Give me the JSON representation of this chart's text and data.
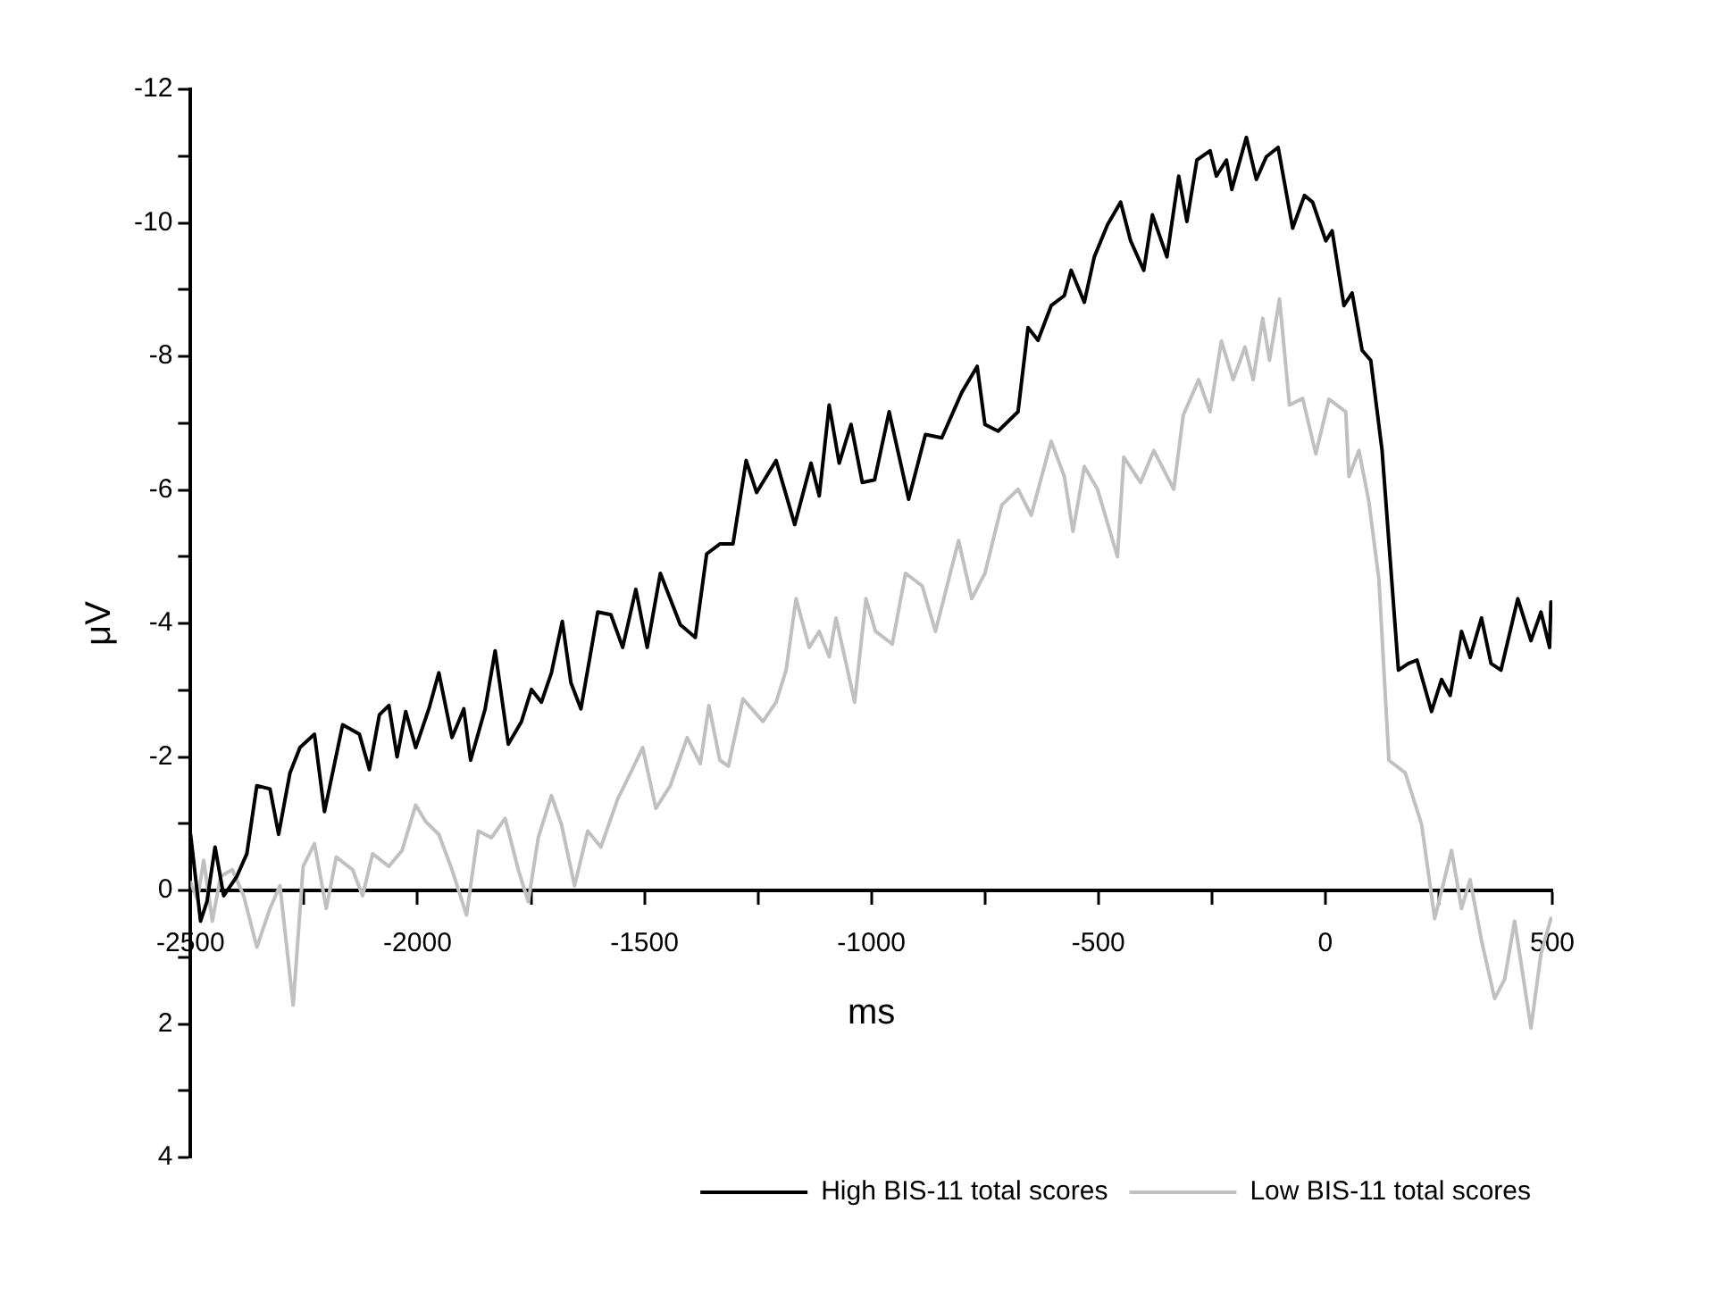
{
  "chart_data": {
    "type": "line",
    "xlabel": "ms",
    "ylabel": "μV",
    "xlim": [
      -2500,
      500
    ],
    "ylim": [
      4,
      -12
    ],
    "xticks": [
      -2500,
      {
        "value": -2250,
        "label": null
      },
      -2000,
      {
        "value": -1750,
        "label": null
      },
      -1500,
      {
        "value": -1250,
        "label": null
      },
      -1000,
      {
        "value": -750,
        "label": null
      },
      -500,
      {
        "value": -250,
        "label": null
      },
      0,
      {
        "value": 250,
        "label": null
      },
      500
    ],
    "yticks": [
      -12,
      {
        "value": -11,
        "label": null
      },
      -10,
      {
        "value": -9,
        "label": null
      },
      -8,
      {
        "value": -7,
        "label": null
      },
      -6,
      {
        "value": -5,
        "label": null
      },
      -4,
      {
        "value": -3,
        "label": null
      },
      -2,
      {
        "value": -1,
        "label": null
      },
      0,
      {
        "value": 1,
        "label": null
      },
      2,
      {
        "value": 3,
        "label": null
      },
      4
    ],
    "grid": false,
    "legend": "bottom right",
    "marker": "none",
    "line_style": "solid",
    "series": [
      {
        "name": "High BIS-11 total scores",
        "color": "#000000",
        "x": [
          -2500,
          -2478,
          -2464,
          -2446,
          -2427,
          -2398,
          -2376,
          -2354,
          -2325,
          -2306,
          -2281,
          -2259,
          -2227,
          -2205,
          -2165,
          -2128,
          -2106,
          -2084,
          -2063,
          -2045,
          -2026,
          -2004,
          -1975,
          -1953,
          -1924,
          -1898,
          -1883,
          -1851,
          -1829,
          -1800,
          -1771,
          -1749,
          -1727,
          -1705,
          -1681,
          -1662,
          -1640,
          -1603,
          -1574,
          -1548,
          -1519,
          -1494,
          -1465,
          -1421,
          -1388,
          -1363,
          -1334,
          -1305,
          -1276,
          -1253,
          -1210,
          -1169,
          -1133,
          -1115,
          -1093,
          -1071,
          -1045,
          -1020,
          -993,
          -961,
          -918,
          -881,
          -845,
          -801,
          -767,
          -750,
          -721,
          -677,
          -655,
          -633,
          -604,
          -575,
          -560,
          -531,
          -509,
          -480,
          -451,
          -429,
          -400,
          -381,
          -349,
          -323,
          -305,
          -283,
          -254,
          -240,
          -218,
          -206,
          -174,
          -152,
          -130,
          -104,
          -72,
          -46,
          -28,
          1,
          15,
          41,
          59,
          81,
          100,
          125,
          161,
          183,
          202,
          234,
          256,
          275,
          300,
          319,
          344,
          365,
          387,
          424,
          453,
          475,
          494,
          497
        ],
        "values": [
          -0.84,
          0.46,
          0.17,
          -0.65,
          0.08,
          -0.21,
          -0.55,
          -1.57,
          -1.52,
          -0.84,
          -1.76,
          -2.14,
          -2.34,
          -1.18,
          -2.48,
          -2.34,
          -1.81,
          -2.63,
          -2.77,
          -2.0,
          -2.68,
          -2.14,
          -2.72,
          -3.26,
          -2.29,
          -2.72,
          -1.95,
          -2.72,
          -3.59,
          -2.19,
          -2.53,
          -3.01,
          -2.82,
          -3.26,
          -4.03,
          -3.11,
          -2.72,
          -4.17,
          -4.13,
          -3.64,
          -4.51,
          -3.64,
          -4.75,
          -3.98,
          -3.79,
          -5.04,
          -5.19,
          -5.19,
          -6.44,
          -5.96,
          -6.44,
          -5.48,
          -6.4,
          -5.91,
          -7.27,
          -6.4,
          -6.98,
          -6.11,
          -6.15,
          -7.17,
          -5.86,
          -6.83,
          -6.78,
          -7.46,
          -7.85,
          -6.98,
          -6.88,
          -7.17,
          -8.43,
          -8.24,
          -8.76,
          -8.91,
          -9.29,
          -8.81,
          -9.49,
          -9.97,
          -10.31,
          -9.73,
          -9.29,
          -10.12,
          -9.49,
          -10.7,
          -10.02,
          -10.94,
          -11.08,
          -10.7,
          -10.94,
          -10.5,
          -11.28,
          -10.65,
          -10.99,
          -11.13,
          -9.92,
          -10.41,
          -10.31,
          -9.73,
          -9.88,
          -8.76,
          -8.95,
          -8.09,
          -7.94,
          -6.59,
          -3.3,
          -3.4,
          -3.45,
          -2.68,
          -3.16,
          -2.92,
          -3.88,
          -3.49,
          -4.08,
          -3.4,
          -3.3,
          -4.37,
          -3.74,
          -4.17,
          -3.64,
          -4.32
        ]
      },
      {
        "name": "Low BIS-11 total scores",
        "color": "#c0c0c0",
        "x": [
          -2500,
          -2485,
          -2471,
          -2452,
          -2434,
          -2408,
          -2383,
          -2354,
          -2325,
          -2303,
          -2274,
          -2252,
          -2227,
          -2201,
          -2179,
          -2143,
          -2121,
          -2099,
          -2063,
          -2034,
          -2004,
          -1982,
          -1953,
          -1924,
          -1892,
          -1866,
          -1837,
          -1807,
          -1778,
          -1756,
          -1734,
          -1705,
          -1683,
          -1654,
          -1625,
          -1596,
          -1559,
          -1527,
          -1504,
          -1475,
          -1443,
          -1406,
          -1377,
          -1358,
          -1334,
          -1315,
          -1283,
          -1239,
          -1210,
          -1188,
          -1166,
          -1137,
          -1115,
          -1093,
          -1078,
          -1037,
          -1012,
          -991,
          -954,
          -925,
          -888,
          -859,
          -808,
          -779,
          -750,
          -713,
          -677,
          -648,
          -604,
          -575,
          -556,
          -531,
          -502,
          -458,
          -444,
          -407,
          -378,
          -334,
          -313,
          -279,
          -254,
          -229,
          -203,
          -177,
          -159,
          -138,
          -123,
          -101,
          -79,
          -50,
          -21,
          8,
          45,
          52,
          74,
          96,
          118,
          140,
          176,
          212,
          241,
          278,
          300,
          319,
          344,
          373,
          395,
          417,
          453,
          475,
          497
        ],
        "values": [
          -0.12,
          0.13,
          -0.45,
          0.46,
          -0.21,
          -0.31,
          0.08,
          0.85,
          0.27,
          -0.07,
          1.72,
          -0.36,
          -0.7,
          0.27,
          -0.5,
          -0.31,
          0.08,
          -0.55,
          -0.36,
          -0.6,
          -1.28,
          -1.03,
          -0.84,
          -0.31,
          0.37,
          -0.89,
          -0.79,
          -1.08,
          -0.31,
          0.17,
          -0.79,
          -1.42,
          -0.99,
          -0.07,
          -0.89,
          -0.65,
          -1.37,
          -1.81,
          -2.14,
          -1.23,
          -1.57,
          -2.29,
          -1.9,
          -2.77,
          -1.95,
          -1.86,
          -2.87,
          -2.53,
          -2.82,
          -3.3,
          -4.37,
          -3.64,
          -3.88,
          -3.5,
          -4.08,
          -2.82,
          -4.37,
          -3.88,
          -3.69,
          -4.75,
          -4.56,
          -3.88,
          -5.24,
          -4.37,
          -4.75,
          -5.77,
          -6.01,
          -5.62,
          -6.73,
          -6.2,
          -5.38,
          -6.35,
          -6.01,
          -5.0,
          -6.49,
          -6.11,
          -6.59,
          -6.01,
          -7.12,
          -7.65,
          -7.17,
          -8.23,
          -7.65,
          -8.14,
          -7.65,
          -8.57,
          -7.94,
          -8.86,
          -7.27,
          -7.37,
          -6.54,
          -7.36,
          -7.17,
          -6.2,
          -6.59,
          -5.82,
          -4.66,
          -1.95,
          -1.76,
          -0.99,
          0.42,
          -0.6,
          0.27,
          -0.16,
          0.75,
          1.62,
          1.33,
          0.46,
          2.06,
          0.95,
          0.42
        ]
      }
    ]
  }
}
